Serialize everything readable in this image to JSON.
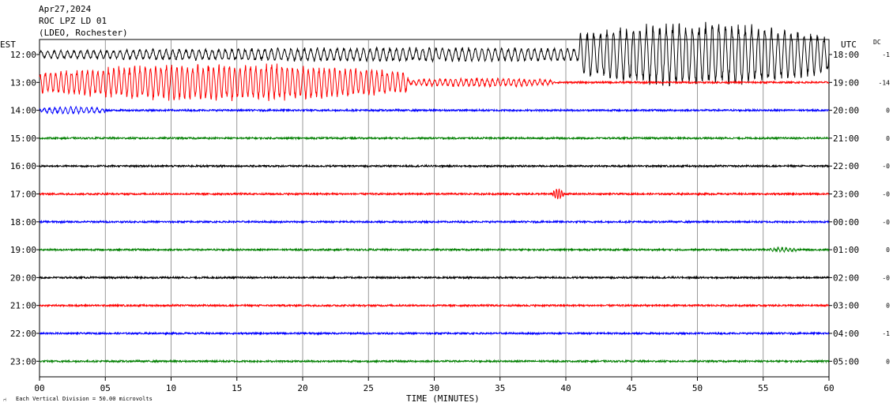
{
  "header": {
    "date": "Apr27,2024",
    "station": "ROC LPZ LD 01",
    "network": "(LDEO, Rochester)"
  },
  "left_axis_title": "EST",
  "right_axis_title": "UTC",
  "dc_title": "DC",
  "x_axis_title": "TIME (MINUTES)",
  "footer_note": "Each Vertical Division =   50.00 microvolts",
  "colors": {
    "black": "#000000",
    "red": "#ff0000",
    "blue": "#0000ff",
    "green": "#007f00",
    "grid": "#808080"
  },
  "chart_data": {
    "type": "line",
    "title": "ROC LPZ LD 01",
    "xlabel": "TIME (MINUTES)",
    "xlim": [
      0,
      60
    ],
    "x_ticks": [
      "00",
      "05",
      "10",
      "15",
      "20",
      "25",
      "30",
      "35",
      "40",
      "45",
      "50",
      "55",
      "60"
    ],
    "rows": [
      {
        "est": "12:00",
        "utc": "18:00",
        "dc": "-1",
        "color": "black",
        "events": [
          {
            "start": 0,
            "end": 60,
            "amp": 0.4,
            "period": 0.5
          },
          {
            "start": 41,
            "end": 60,
            "amp": 1.6,
            "period": 0.5
          }
        ]
      },
      {
        "est": "13:00",
        "utc": "19:00",
        "dc": "-14",
        "color": "red",
        "events": [
          {
            "start": 0,
            "end": 28,
            "amp": 1.1,
            "period": 0.4
          },
          {
            "start": 28,
            "end": 39,
            "amp": 0.25,
            "period": 0.4
          }
        ]
      },
      {
        "est": "14:00",
        "utc": "20:00",
        "dc": "0",
        "color": "blue",
        "events": [
          {
            "start": 0,
            "end": 5,
            "amp": 0.2,
            "period": 0.4
          }
        ]
      },
      {
        "est": "15:00",
        "utc": "21:00",
        "dc": "0",
        "color": "green",
        "events": []
      },
      {
        "est": "16:00",
        "utc": "22:00",
        "dc": "-0",
        "color": "black",
        "events": []
      },
      {
        "est": "17:00",
        "utc": "23:00",
        "dc": "-0",
        "color": "red",
        "events": [
          {
            "start": 39.0,
            "end": 39.8,
            "amp": 0.35,
            "period": 0.2
          }
        ]
      },
      {
        "est": "18:00",
        "utc": "00:00",
        "dc": "-0",
        "color": "blue",
        "events": []
      },
      {
        "est": "19:00",
        "utc": "01:00",
        "dc": "0",
        "color": "green",
        "events": [
          {
            "start": 55.5,
            "end": 57.5,
            "amp": 0.12,
            "period": 0.3
          }
        ]
      },
      {
        "est": "20:00",
        "utc": "02:00",
        "dc": "-0",
        "color": "black",
        "events": []
      },
      {
        "est": "21:00",
        "utc": "03:00",
        "dc": "0",
        "color": "red",
        "events": []
      },
      {
        "est": "22:00",
        "utc": "04:00",
        "dc": "-1",
        "color": "blue",
        "events": []
      },
      {
        "est": "23:00",
        "utc": "05:00",
        "dc": "0",
        "color": "green",
        "events": []
      }
    ]
  }
}
